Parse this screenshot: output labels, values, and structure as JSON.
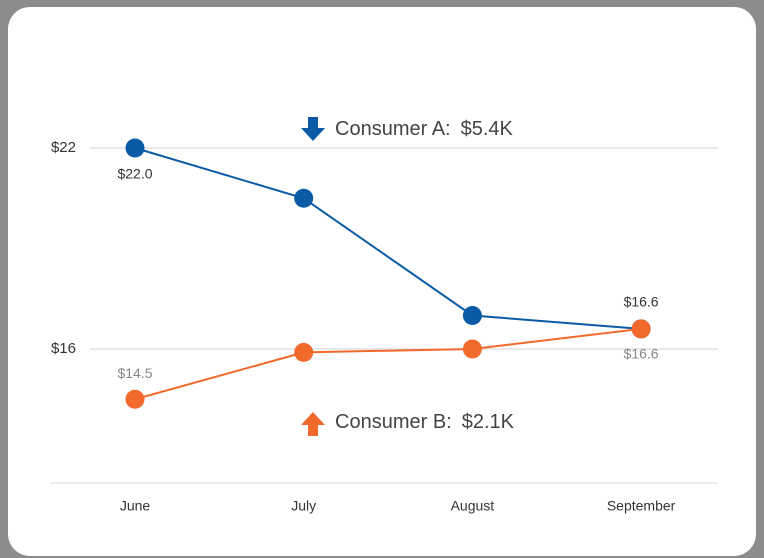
{
  "chart_data": {
    "type": "line",
    "categories": [
      "June",
      "July",
      "August",
      "September"
    ],
    "series": [
      {
        "color": "#0b5aa6",
        "values": [
          22.0,
          20.5,
          17.0,
          16.6
        ],
        "value_labels": [
          "$22.0",
          null,
          null,
          "$16.6"
        ]
      },
      {
        "color": "#f26a2b",
        "values": [
          14.5,
          15.9,
          16.0,
          16.6
        ],
        "value_labels": [
          "$14.5",
          null,
          null,
          "$16.6"
        ]
      }
    ],
    "annotations": [
      {
        "label": "Consumer A:",
        "value": "$5.4K",
        "direction": "down",
        "color": "#0b5aa6"
      },
      {
        "label": "Consumer B:",
        "value": "$2.1K",
        "direction": "up",
        "color": "#f26a2b"
      }
    ],
    "ylim": [
      12,
      24
    ],
    "yticks": [
      {
        "value": 22,
        "label": "$22"
      },
      {
        "value": 16,
        "label": "$16"
      }
    ],
    "grid": true
  }
}
